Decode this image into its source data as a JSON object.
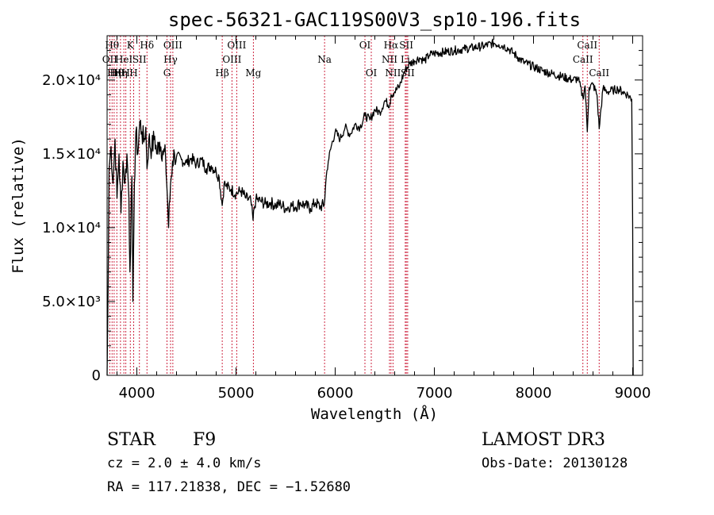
{
  "chart_data": {
    "type": "line",
    "title": "spec-56321-GAC119S00V3_sp10-196.fits",
    "xlabel": "Wavelength (Å)",
    "ylabel": "Flux (relative)",
    "xlim": [
      3700,
      9100
    ],
    "ylim": [
      0,
      23000
    ],
    "x_ticks": [
      4000,
      5000,
      6000,
      7000,
      8000,
      9000
    ],
    "x_tick_labels": [
      "4000",
      "5000",
      "6000",
      "7000",
      "8000",
      "9000"
    ],
    "y_ticks": [
      0,
      5000,
      10000,
      15000,
      20000
    ],
    "y_tick_labels": [
      "0",
      "5.0×10³",
      "1.0×10⁴",
      "1.5×10⁴",
      "2.0×10⁴"
    ],
    "grid": false,
    "series": [
      {
        "x": [
          3700,
          3710,
          3720,
          3740,
          3760,
          3780,
          3800,
          3820,
          3840,
          3860,
          3880,
          3900,
          3920,
          3930,
          3950,
          3960,
          3968,
          3975,
          3990,
          4010,
          4030,
          4050,
          4070,
          4090,
          4102,
          4120,
          4150,
          4180,
          4200,
          4230,
          4260,
          4290,
          4305,
          4320,
          4340,
          4360,
          4380,
          4400,
          4450,
          4500,
          4550,
          4600,
          4650,
          4700,
          4750,
          4800,
          4830,
          4861,
          4880,
          4900,
          4950,
          5000,
          5050,
          5100,
          5150,
          5172,
          5183,
          5200,
          5250,
          5300,
          5350,
          5400,
          5450,
          5500,
          5550,
          5600,
          5650,
          5700,
          5750,
          5800,
          5850,
          5890,
          5900,
          5910,
          5930,
          5960,
          6000,
          6050,
          6100,
          6150,
          6200,
          6250,
          6300,
          6350,
          6400,
          6450,
          6500,
          6550,
          6563,
          6600,
          6650,
          6700,
          6750,
          6800,
          6850,
          6900,
          6950,
          7000,
          7100,
          7200,
          7300,
          7400,
          7500,
          7600,
          7650,
          7700,
          7750,
          7800,
          7850,
          7900,
          8000,
          8100,
          8200,
          8300,
          8400,
          8450,
          8498,
          8520,
          8542,
          8560,
          8600,
          8640,
          8662,
          8700,
          8750,
          8800,
          8850,
          8900,
          8950,
          8990,
          9000,
          9005
        ],
        "y": [
          0,
          6000,
          14000,
          15500,
          13000,
          16000,
          12000,
          15000,
          11000,
          14500,
          13000,
          15000,
          12000,
          7000,
          13500,
          5000,
          9000,
          13000,
          16500,
          15000,
          17200,
          16500,
          15800,
          16800,
          14000,
          16000,
          15300,
          16200,
          15000,
          15800,
          15200,
          14700,
          12500,
          10000,
          13000,
          14500,
          15000,
          14800,
          14600,
          14400,
          14700,
          14300,
          14600,
          14000,
          14200,
          13800,
          13400,
          11500,
          13000,
          12800,
          12600,
          12300,
          12500,
          12000,
          11800,
          10500,
          11300,
          11900,
          11800,
          11600,
          11700,
          11500,
          11600,
          11300,
          11500,
          11400,
          11700,
          11500,
          11300,
          11700,
          11400,
          11600,
          12500,
          13500,
          14500,
          15500,
          16500,
          16000,
          16800,
          16300,
          17000,
          16800,
          17600,
          17300,
          18000,
          17800,
          18600,
          18300,
          19000,
          19200,
          19600,
          20600,
          21100,
          21300,
          21500,
          21300,
          21700,
          21800,
          21900,
          22000,
          22100,
          22200,
          22300,
          22500,
          22400,
          22300,
          22100,
          21800,
          21500,
          21200,
          20900,
          20600,
          20400,
          20200,
          20000,
          20100,
          18800,
          19600,
          16500,
          19500,
          19700,
          19000,
          16700,
          19400,
          19200,
          19300,
          19400,
          19200,
          19000,
          18700,
          10000,
          0
        ]
      }
    ],
    "lines": [
      {
        "w": 3727,
        "label": "OII",
        "row": 1
      },
      {
        "w": 3750,
        "label": "Hθ",
        "row": 0
      },
      {
        "w": 3771,
        "label": "Hη",
        "row": 2
      },
      {
        "w": 3798,
        "label": "Hθ",
        "row": 2
      },
      {
        "w": 3835,
        "label": "Hη",
        "row": 2
      },
      {
        "w": 3869,
        "label": "HeI",
        "row": 1
      },
      {
        "w": 3889,
        "label": "H",
        "row": 2
      },
      {
        "w": 3934,
        "label": "K",
        "row": 0
      },
      {
        "w": 3968,
        "label": "H",
        "row": 2
      },
      {
        "w": 4026,
        "label": "SII",
        "row": 1
      },
      {
        "w": 4102,
        "label": "Hδ",
        "row": 0
      },
      {
        "w": 4304,
        "label": "G",
        "row": 2
      },
      {
        "w": 4340,
        "label": "Hγ",
        "row": 1
      },
      {
        "w": 4363,
        "label": "OIII",
        "row": 0
      },
      {
        "w": 4861,
        "label": "Hβ",
        "row": 2
      },
      {
        "w": 4959,
        "label": "OIII",
        "row": 1
      },
      {
        "w": 5007,
        "label": "OIII",
        "row": 0
      },
      {
        "w": 5175,
        "label": "Mg",
        "row": 2
      },
      {
        "w": 5893,
        "label": "Na",
        "row": 1
      },
      {
        "w": 6300,
        "label": "OI",
        "row": 0
      },
      {
        "w": 6364,
        "label": "OI",
        "row": 2
      },
      {
        "w": 6548,
        "label": "NII",
        "row": 1
      },
      {
        "w": 6563,
        "label": "Hα",
        "row": 0
      },
      {
        "w": 6583,
        "label": "NII",
        "row": 2
      },
      {
        "w": 6707,
        "label": "Li",
        "row": 1
      },
      {
        "w": 6717,
        "label": "SII",
        "row": 0
      },
      {
        "w": 6731,
        "label": "SII",
        "row": 2
      },
      {
        "w": 8498,
        "label": "CaII",
        "row": 1
      },
      {
        "w": 8542,
        "label": "CaII",
        "row": 0
      },
      {
        "w": 8662,
        "label": "CaII",
        "row": 2
      }
    ]
  },
  "info": {
    "class": "STAR",
    "subclass": "F9",
    "cz": "cz = 2.0 ± 4.0 km/s",
    "coords": "RA = 117.21838, DEC =  −1.52680",
    "survey": "LAMOST DR3",
    "obs_date": "Obs-Date: 20130128"
  }
}
